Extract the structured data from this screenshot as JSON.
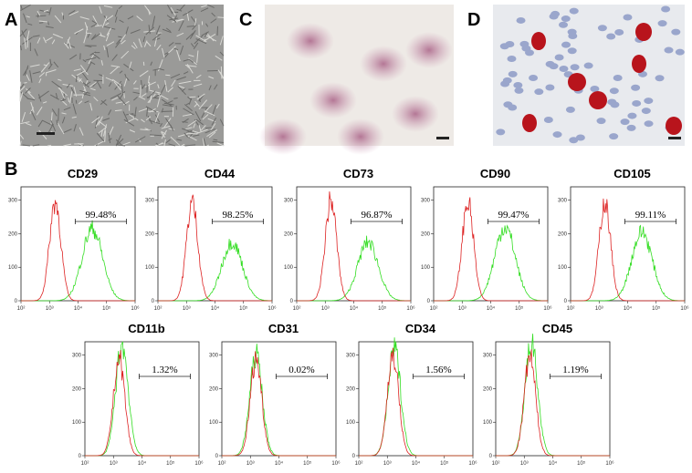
{
  "panel_labels": {
    "a": "A",
    "b": "B",
    "c": "C",
    "d": "D"
  },
  "histogram_axes": {
    "xlim": [
      2,
      6
    ],
    "xticks": [
      {
        "value": 2,
        "label": "10²"
      },
      {
        "value": 3,
        "label": "10³"
      },
      {
        "value": 4,
        "label": "10⁴"
      },
      {
        "value": 5,
        "label": "10⁵"
      },
      {
        "value": 6,
        "label": "10⁶"
      }
    ],
    "ylim": [
      0,
      340
    ],
    "yticks": [
      0,
      100,
      200,
      300
    ]
  },
  "histograms": [
    {
      "title": "CD29",
      "gate_label": "99.48%",
      "red": {
        "center": 3.2,
        "height": 295
      },
      "green": {
        "center": 4.5,
        "height": 215
      }
    },
    {
      "title": "CD44",
      "gate_label": "98.25%",
      "red": {
        "center": 3.2,
        "height": 295
      },
      "green": {
        "center": 4.6,
        "height": 175
      }
    },
    {
      "title": "CD73",
      "gate_label": "96.87%",
      "red": {
        "center": 3.2,
        "height": 300
      },
      "green": {
        "center": 4.5,
        "height": 175
      }
    },
    {
      "title": "CD90",
      "gate_label": "99.47%",
      "red": {
        "center": 3.2,
        "height": 295
      },
      "green": {
        "center": 4.5,
        "height": 220
      }
    },
    {
      "title": "CD105",
      "gate_label": "99.11%",
      "red": {
        "center": 3.2,
        "height": 295
      },
      "green": {
        "center": 4.5,
        "height": 205
      }
    },
    {
      "title": "CD11b",
      "gate_label": "1.32%",
      "red": {
        "center": 3.2,
        "height": 290
      },
      "green": {
        "center": 3.3,
        "height": 330
      }
    },
    {
      "title": "CD31",
      "gate_label": "0.02%",
      "red": {
        "center": 3.2,
        "height": 290
      },
      "green": {
        "center": 3.2,
        "height": 300
      }
    },
    {
      "title": "CD34",
      "gate_label": "1.56%",
      "red": {
        "center": 3.2,
        "height": 300
      },
      "green": {
        "center": 3.25,
        "height": 320
      }
    },
    {
      "title": "CD45",
      "gate_label": "1.19%",
      "red": {
        "center": 3.2,
        "height": 295
      },
      "green": {
        "center": 3.25,
        "height": 335
      }
    }
  ]
}
